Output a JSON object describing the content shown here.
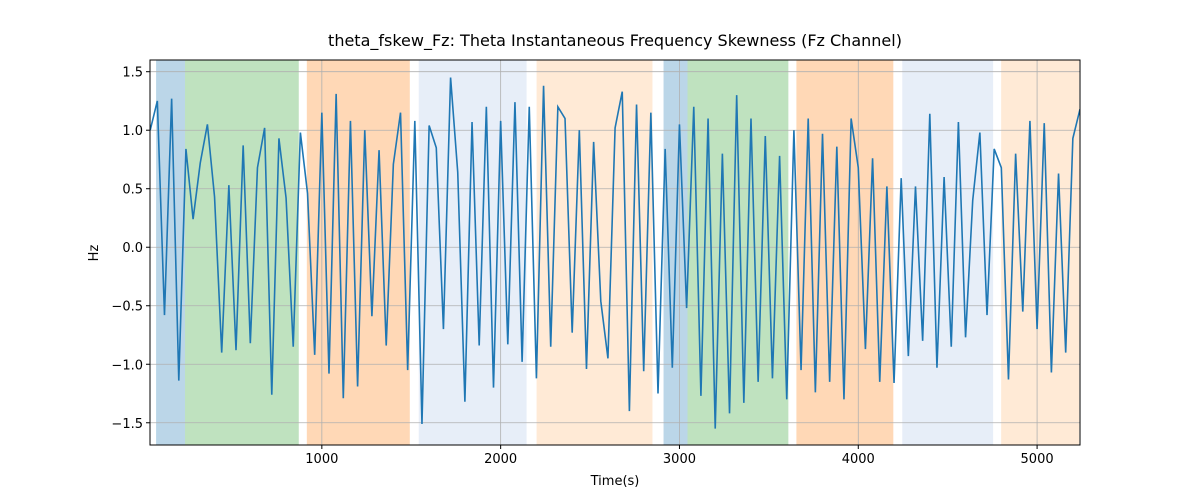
{
  "chart_data": {
    "type": "line",
    "title": "theta_fskew_Fz: Theta Instantaneous Frequency Skewness (Fz Channel)",
    "x_label": "Time(s)",
    "y_label": "Hz",
    "xlim": [
      39,
      5240
    ],
    "ylim": [
      -1.69,
      1.6
    ],
    "xticks": [
      1000,
      2000,
      3000,
      4000,
      5000
    ],
    "yticks": [
      {
        "value": -1.5,
        "label": "−1.5"
      },
      {
        "value": -1.0,
        "label": "−1.0"
      },
      {
        "value": -0.5,
        "label": "−0.5"
      },
      {
        "value": 0.0,
        "label": "0.0"
      },
      {
        "value": 0.5,
        "label": "0.5"
      },
      {
        "value": 1.0,
        "label": "1.0"
      },
      {
        "value": 1.5,
        "label": "1.5"
      }
    ],
    "grid": true,
    "spans": [
      {
        "start": 73,
        "end": 235,
        "color": "#1f77b4"
      },
      {
        "start": 235,
        "end": 871,
        "color": "#2ca02c"
      },
      {
        "start": 916,
        "end": 1492,
        "color": "#ff7f0e"
      },
      {
        "start": 1542,
        "end": 2145,
        "color": "#aec7e8"
      },
      {
        "start": 2201,
        "end": 2849,
        "color": "#ffbb78"
      },
      {
        "start": 2911,
        "end": 3045,
        "color": "#1f77b4"
      },
      {
        "start": 3045,
        "end": 3609,
        "color": "#2ca02c"
      },
      {
        "start": 3654,
        "end": 4196,
        "color": "#ff7f0e"
      },
      {
        "start": 4246,
        "end": 4754,
        "color": "#aec7e8"
      },
      {
        "start": 4799,
        "end": 5235,
        "color": "#ffbb78"
      }
    ],
    "x": [
      40,
      80,
      120,
      160,
      200,
      240,
      280,
      320,
      360,
      400,
      440,
      480,
      520,
      560,
      600,
      640,
      680,
      720,
      760,
      800,
      840,
      880,
      920,
      960,
      1000,
      1040,
      1080,
      1120,
      1160,
      1200,
      1240,
      1280,
      1320,
      1360,
      1400,
      1440,
      1480,
      1520,
      1560,
      1600,
      1640,
      1680,
      1720,
      1760,
      1800,
      1840,
      1880,
      1920,
      1960,
      2000,
      2040,
      2080,
      2120,
      2160,
      2200,
      2240,
      2280,
      2320,
      2360,
      2400,
      2440,
      2480,
      2520,
      2560,
      2600,
      2640,
      2680,
      2720,
      2760,
      2800,
      2840,
      2880,
      2920,
      2960,
      3000,
      3040,
      3080,
      3120,
      3160,
      3200,
      3240,
      3280,
      3320,
      3360,
      3400,
      3440,
      3480,
      3520,
      3560,
      3600,
      3640,
      3680,
      3720,
      3760,
      3800,
      3840,
      3880,
      3920,
      3960,
      4000,
      4040,
      4080,
      4120,
      4160,
      4200,
      4240,
      4280,
      4320,
      4360,
      4400,
      4440,
      4480,
      4520,
      4560,
      4600,
      4640,
      4680,
      4720,
      4760,
      4800,
      4840,
      4880,
      4920,
      4960,
      5000,
      5040,
      5080,
      5120,
      5160,
      5200,
      5240
    ],
    "series": [
      {
        "color": "#1f77b4",
        "values": [
          1.0,
          1.25,
          -0.58,
          1.27,
          -1.14,
          0.84,
          0.24,
          0.72,
          1.05,
          0.43,
          -0.9,
          0.53,
          -0.88,
          0.87,
          -0.82,
          0.68,
          1.02,
          -1.26,
          0.93,
          0.42,
          -0.85,
          0.98,
          0.46,
          -0.92,
          1.15,
          -1.08,
          1.31,
          -1.29,
          1.08,
          -1.19,
          1.0,
          -0.59,
          0.83,
          -0.84,
          0.71,
          1.15,
          -1.05,
          1.08,
          -1.51,
          1.04,
          0.85,
          -0.7,
          1.45,
          0.64,
          -1.32,
          1.07,
          -0.84,
          1.2,
          -1.2,
          1.08,
          -0.83,
          1.24,
          -0.98,
          1.2,
          -1.12,
          1.38,
          -0.85,
          1.2,
          1.1,
          -0.73,
          1.0,
          -1.04,
          0.9,
          -0.46,
          -0.95,
          1.02,
          1.33,
          -1.4,
          1.22,
          -1.06,
          1.15,
          -1.25,
          0.84,
          -1.03,
          1.05,
          -0.52,
          1.2,
          -1.27,
          1.1,
          -1.55,
          0.8,
          -1.42,
          1.3,
          -1.33,
          1.1,
          -1.15,
          0.95,
          -1.12,
          0.78,
          -1.3,
          1.0,
          -1.05,
          1.1,
          -1.24,
          0.97,
          -1.15,
          0.86,
          -1.3,
          1.1,
          0.68,
          -0.87,
          0.76,
          -1.15,
          0.52,
          -1.16,
          0.59,
          -0.93,
          0.52,
          -0.8,
          1.14,
          -1.03,
          0.6,
          -0.85,
          1.07,
          -0.77,
          0.4,
          0.98,
          -0.58,
          0.84,
          0.68,
          -1.13,
          0.8,
          -0.55,
          1.08,
          -0.7,
          1.06,
          -1.07,
          0.63,
          -0.9,
          0.93,
          1.18
        ]
      }
    ]
  }
}
